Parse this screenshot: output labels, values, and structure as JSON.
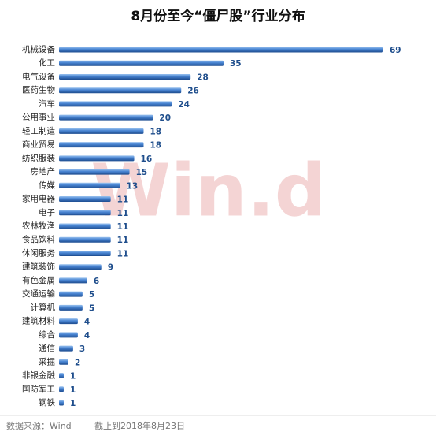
{
  "chart_data": {
    "type": "bar",
    "orientation": "horizontal",
    "title": "8月份至今“僵尸股”行业分布",
    "categories": [
      "机械设备",
      "化工",
      "电气设备",
      "医药生物",
      "汽车",
      "公用事业",
      "轻工制造",
      "商业贸易",
      "纺织服装",
      "房地产",
      "传媒",
      "家用电器",
      "电子",
      "农林牧渔",
      "食品饮料",
      "休闲服务",
      "建筑装饰",
      "有色金属",
      "交通运输",
      "计算机",
      "建筑材料",
      "综合",
      "通信",
      "采掘",
      "非银金融",
      "国防军工",
      "钢铁"
    ],
    "values": [
      69,
      35,
      28,
      26,
      24,
      20,
      18,
      18,
      16,
      15,
      13,
      11,
      11,
      11,
      11,
      11,
      9,
      6,
      5,
      5,
      4,
      4,
      3,
      2,
      1,
      1,
      1
    ],
    "color": "#3f7fd0",
    "watermark": "Win.d",
    "source": "数据来源：Wind",
    "date_note": "截止到2018年8月23日"
  }
}
